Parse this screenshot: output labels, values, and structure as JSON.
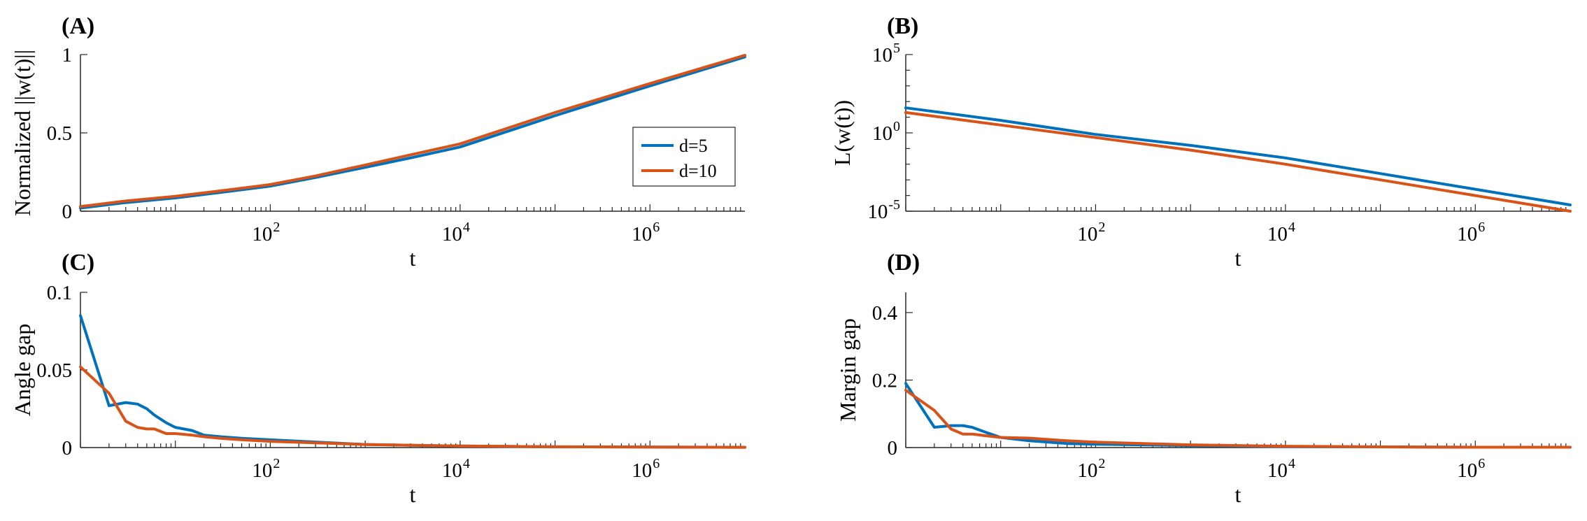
{
  "colors": {
    "d5": "#0072BD",
    "d10": "#D95319"
  },
  "chart_data": [
    {
      "id": "A",
      "panel_label": "(A)",
      "type": "line",
      "xscale": "log",
      "xlim": [
        1,
        10000000
      ],
      "x_ticks": [
        {
          "base": "10",
          "exp": "2"
        },
        {
          "base": "10",
          "exp": "4"
        },
        {
          "base": "10",
          "exp": "6"
        }
      ],
      "xlabel": "t",
      "yscale": "linear",
      "ylim": [
        0,
        1
      ],
      "y_ticks": [
        {
          "value": 0,
          "label": "0"
        },
        {
          "value": 0.5,
          "label": "0.5"
        },
        {
          "value": 1,
          "label": "1"
        }
      ],
      "ylabel": "Normalized ||w(t)||",
      "legend": {
        "position": "right",
        "entries": [
          "d=5",
          "d=10"
        ]
      },
      "series": [
        {
          "name": "d=5",
          "color_key": "d5",
          "x": [
            1,
            3,
            10,
            30,
            100,
            300,
            1000,
            3000,
            10000,
            100000,
            1000000,
            10000000
          ],
          "y": [
            0.02,
            0.055,
            0.085,
            0.12,
            0.16,
            0.215,
            0.28,
            0.34,
            0.41,
            0.61,
            0.8,
            0.985
          ]
        },
        {
          "name": "d=10",
          "color_key": "d10",
          "x": [
            1,
            3,
            10,
            30,
            100,
            300,
            1000,
            3000,
            10000,
            100000,
            1000000,
            10000000
          ],
          "y": [
            0.03,
            0.065,
            0.095,
            0.13,
            0.17,
            0.225,
            0.295,
            0.36,
            0.43,
            0.63,
            0.815,
            0.995
          ]
        }
      ]
    },
    {
      "id": "B",
      "panel_label": "(B)",
      "type": "line",
      "xscale": "log",
      "xlim": [
        1,
        10000000
      ],
      "x_ticks": [
        {
          "base": "10",
          "exp": "2"
        },
        {
          "base": "10",
          "exp": "4"
        },
        {
          "base": "10",
          "exp": "6"
        }
      ],
      "xlabel": "t",
      "yscale": "log",
      "ylim_exp": [
        -5,
        5
      ],
      "y_ticks": [
        {
          "exp": 5,
          "base": "10",
          "sup": "5"
        },
        {
          "exp": 0,
          "base": "10",
          "sup": "0"
        },
        {
          "exp": -5,
          "base": "10",
          "sup": "-5"
        }
      ],
      "ylabel": "L(w(t))",
      "series": [
        {
          "name": "d=5",
          "color_key": "d5",
          "x": [
            1,
            10,
            100,
            1000,
            10000,
            100000,
            1000000,
            10000000
          ],
          "y_exp": [
            1.6,
            0.8,
            -0.1,
            -0.8,
            -1.6,
            -2.6,
            -3.6,
            -4.6
          ]
        },
        {
          "name": "d=10",
          "color_key": "d10",
          "x": [
            1,
            10,
            100,
            1000,
            10000,
            100000,
            1000000,
            10000000
          ],
          "y_exp": [
            1.3,
            0.5,
            -0.3,
            -1.1,
            -2.0,
            -3.0,
            -4.0,
            -5.0
          ]
        }
      ]
    },
    {
      "id": "C",
      "panel_label": "(C)",
      "type": "line",
      "xscale": "log",
      "xlim": [
        1,
        10000000
      ],
      "x_ticks": [
        {
          "base": "10",
          "exp": "2"
        },
        {
          "base": "10",
          "exp": "4"
        },
        {
          "base": "10",
          "exp": "6"
        }
      ],
      "xlabel": "t",
      "yscale": "linear",
      "ylim": [
        0,
        0.1
      ],
      "y_ticks": [
        {
          "value": 0,
          "label": "0"
        },
        {
          "value": 0.05,
          "label": "0.05"
        },
        {
          "value": 0.1,
          "label": "0.1"
        }
      ],
      "ylabel": "Angle gap",
      "series": [
        {
          "name": "d=5",
          "color_key": "d5",
          "x": [
            1,
            2,
            3,
            4,
            5,
            6,
            8,
            10,
            15,
            20,
            30,
            50,
            100,
            1000,
            10000,
            100000,
            1000000,
            10000000
          ],
          "y": [
            0.085,
            0.027,
            0.029,
            0.028,
            0.025,
            0.021,
            0.016,
            0.013,
            0.011,
            0.008,
            0.007,
            0.006,
            0.005,
            0.002,
            0.001,
            0.0005,
            0.0003,
            0.0002
          ]
        },
        {
          "name": "d=10",
          "color_key": "d10",
          "x": [
            1,
            2,
            3,
            4,
            5,
            6,
            8,
            10,
            15,
            20,
            30,
            50,
            100,
            1000,
            10000,
            100000,
            1000000,
            10000000
          ],
          "y": [
            0.052,
            0.035,
            0.017,
            0.013,
            0.012,
            0.012,
            0.009,
            0.009,
            0.008,
            0.007,
            0.006,
            0.005,
            0.004,
            0.002,
            0.001,
            0.0005,
            0.0003,
            0.0002
          ]
        }
      ]
    },
    {
      "id": "D",
      "panel_label": "(D)",
      "type": "line",
      "xscale": "log",
      "xlim": [
        1,
        10000000
      ],
      "x_ticks": [
        {
          "base": "10",
          "exp": "2"
        },
        {
          "base": "10",
          "exp": "4"
        },
        {
          "base": "10",
          "exp": "6"
        }
      ],
      "xlabel": "t",
      "yscale": "linear",
      "ylim": [
        0,
        0.46
      ],
      "y_ticks": [
        {
          "value": 0,
          "label": "0"
        },
        {
          "value": 0.2,
          "label": "0.2"
        },
        {
          "value": 0.4,
          "label": "0.4"
        }
      ],
      "ylabel": "Margin gap",
      "series": [
        {
          "name": "d=5",
          "color_key": "d5",
          "x": [
            1,
            2,
            3,
            4,
            5,
            7,
            10,
            20,
            50,
            100,
            1000,
            10000,
            100000,
            1000000,
            10000000
          ],
          "y": [
            0.19,
            0.06,
            0.065,
            0.065,
            0.06,
            0.045,
            0.03,
            0.02,
            0.012,
            0.01,
            0.006,
            0.003,
            0.002,
            0.001,
            0.001
          ]
        },
        {
          "name": "d=10",
          "color_key": "d10",
          "x": [
            1,
            2,
            3,
            4,
            5,
            7,
            10,
            20,
            50,
            100,
            1000,
            10000,
            100000,
            1000000,
            10000000
          ],
          "y": [
            0.17,
            0.11,
            0.055,
            0.04,
            0.04,
            0.035,
            0.03,
            0.028,
            0.02,
            0.016,
            0.008,
            0.004,
            0.002,
            0.001,
            0.001
          ]
        }
      ]
    }
  ]
}
